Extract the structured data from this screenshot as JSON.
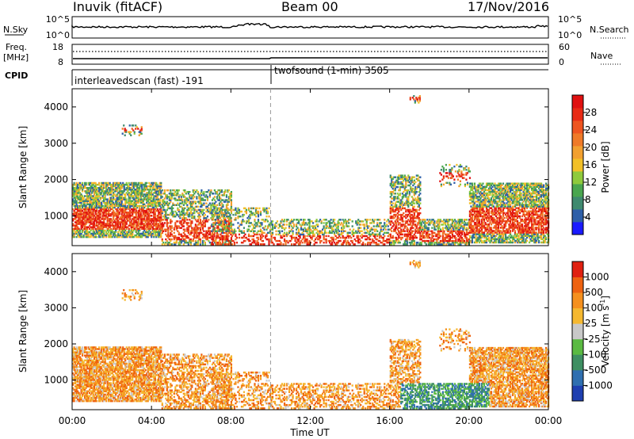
{
  "header": {
    "station": "Inuvik (fitACF)",
    "beam": "Beam 00",
    "date": "17/Nov/2016"
  },
  "noise_panel": {
    "left_label": "N.Sky",
    "right_label": "N.Search",
    "left_ticks": [
      "10^5",
      "10^0"
    ],
    "right_ticks": [
      "10^5",
      "10^0"
    ],
    "left_line_style": "solid",
    "right_line_style": "dotted"
  },
  "freq_panel": {
    "left_label_line1": "Freq.",
    "left_label_line2": "[MHz]",
    "right_label": "Nave",
    "left_ticks": [
      "18",
      "8"
    ],
    "right_ticks": [
      "60",
      "0"
    ],
    "left_line_style": "solid",
    "right_line_style": "dotted"
  },
  "cpid_panel": {
    "label": "CPID",
    "segments": [
      {
        "text": "interleavedscan (fast) -191",
        "start_hour": 0
      },
      {
        "text": "twofsound (1-min) 3505",
        "start_hour": 10
      }
    ]
  },
  "chart_data": [
    {
      "type": "heatmap",
      "name": "power",
      "ylabel": "Slant Range [km]",
      "xlabel": "",
      "x_ticks": [
        "00:00",
        "04:00",
        "08:00",
        "12:00",
        "16:00",
        "20:00",
        "00:00"
      ],
      "x_range_hours": [
        0,
        24
      ],
      "y_ticks": [
        1000,
        2000,
        3000,
        4000
      ],
      "ylim": [
        180,
        4500
      ],
      "colorbar_label": "Power [dB]",
      "colorbar_ticks": [
        "28",
        "24",
        "20",
        "16",
        "12",
        "8",
        "4"
      ],
      "colorbar_colors": [
        "#1a1aff",
        "#2e5fa8",
        "#3f8a6f",
        "#4aa64f",
        "#8fca3c",
        "#f2c028",
        "#f2a030",
        "#ef7a28",
        "#ee5520",
        "#e82a14",
        "#e01010"
      ],
      "vertical_marker_hour": 10
    },
    {
      "type": "heatmap",
      "name": "velocity",
      "ylabel": "Slant Range [km]",
      "xlabel": "Time UT",
      "x_ticks": [
        "00:00",
        "04:00",
        "08:00",
        "12:00",
        "16:00",
        "20:00",
        "00:00"
      ],
      "x_range_hours": [
        0,
        24
      ],
      "y_ticks": [
        1000,
        2000,
        3000,
        4000
      ],
      "ylim": [
        180,
        4500
      ],
      "colorbar_label": "Velocity [m s",
      "colorbar_label_sup": "-1",
      "colorbar_label_end": "]",
      "colorbar_ticks": [
        "1000",
        "500",
        "100",
        "25",
        "-25",
        "-100",
        "-500",
        "-1000"
      ],
      "colorbar_colors": [
        "#1e3fb0",
        "#2f6fb0",
        "#3e8f62",
        "#5aba42",
        "#c8c8c8",
        "#f5b830",
        "#f5901e",
        "#ee6210",
        "#e02010"
      ],
      "vertical_marker_hour": 10
    }
  ]
}
